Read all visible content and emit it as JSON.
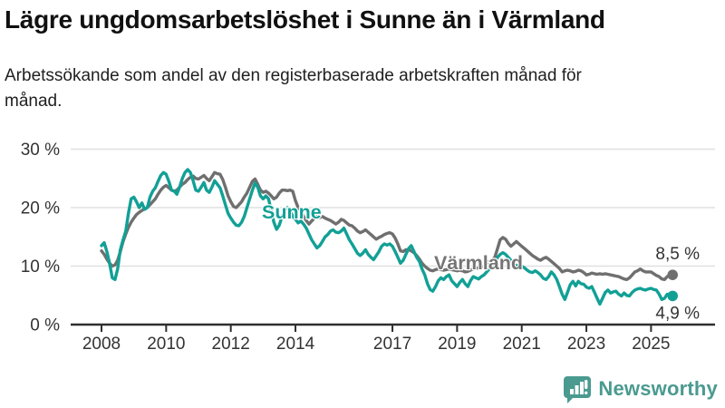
{
  "header": {
    "title": "Lägre ungdomsarbetslöshet i Sunne än i Värmland",
    "subtitle": "Arbetssökande som andel av den registerbaserade arbetskraften månad för månad."
  },
  "chart_data": {
    "type": "line",
    "unit": "%",
    "x_start": "2008-01",
    "x_end": "2025-08",
    "x_frequency": "monthly",
    "ylim": [
      0,
      30
    ],
    "grid": "horizontal",
    "y_ticks": {
      "values": [
        0,
        10,
        20,
        30
      ],
      "labels": [
        "0 %",
        "10 %",
        "20 %",
        "30 %"
      ]
    },
    "x_ticks": {
      "values": [
        2008,
        2010,
        2012,
        2014,
        2017,
        2019,
        2021,
        2023,
        2025
      ],
      "labels": [
        "2008",
        "2010",
        "2012",
        "2014",
        "2017",
        "2019",
        "2021",
        "2023",
        "2025"
      ]
    },
    "axis_color": "#2f2f2f",
    "grid_color": "#e0e0e0",
    "text_color": "#333333",
    "series": [
      {
        "name": "Värmland",
        "color": "#6f6f6f",
        "label_color": "#757575",
        "end_label": "8,5 %",
        "end_value": 8.5,
        "values": [
          12.6,
          12.0,
          11.2,
          10.5,
          10.0,
          10.2,
          11.0,
          12.5,
          14.2,
          15.5,
          16.6,
          17.5,
          18.2,
          18.8,
          19.2,
          19.5,
          19.8,
          20.0,
          20.5,
          21.0,
          21.5,
          22.3,
          23.0,
          23.5,
          23.8,
          23.4,
          23.0,
          22.8,
          23.0,
          23.5,
          24.0,
          24.3,
          24.8,
          25.2,
          25.4,
          25.0,
          24.9,
          25.2,
          25.5,
          25.0,
          24.6,
          25.3,
          26.0,
          25.8,
          25.7,
          24.8,
          23.5,
          22.0,
          21.0,
          20.2,
          20.0,
          20.5,
          21.0,
          21.8,
          22.5,
          23.5,
          24.5,
          24.9,
          24.0,
          23.0,
          22.6,
          22.8,
          22.5,
          22.0,
          21.5,
          21.8,
          22.5,
          23.0,
          23.0,
          22.9,
          23.0,
          22.8,
          21.2,
          20.0,
          19.5,
          18.5,
          17.8,
          17.2,
          17.7,
          18.2,
          18.5,
          18.3,
          18.5,
          18.2,
          18.0,
          17.8,
          17.5,
          17.2,
          17.5,
          18.0,
          17.8,
          17.4,
          17.0,
          16.9,
          16.5,
          16.0,
          15.7,
          15.9,
          16.2,
          15.8,
          15.4,
          15.0,
          14.6,
          14.9,
          15.1,
          15.4,
          15.6,
          15.7,
          15.5,
          14.8,
          13.8,
          12.6,
          12.5,
          12.8,
          12.8,
          12.6,
          12.3,
          11.8,
          11.2,
          10.5,
          10.0,
          9.6,
          9.3,
          9.2,
          9.4,
          9.5,
          9.4,
          9.3,
          9.4,
          9.5,
          9.4,
          9.3,
          9.2,
          9.3,
          9.2,
          9.0,
          9.1,
          9.3,
          9.5,
          9.6,
          9.7,
          9.8,
          10.0,
          10.3,
          10.8,
          11.0,
          11.5,
          13.0,
          14.5,
          14.9,
          14.6,
          13.9,
          13.4,
          13.8,
          14.2,
          13.8,
          13.4,
          13.0,
          12.6,
          12.2,
          11.8,
          11.5,
          11.2,
          11.0,
          11.3,
          11.5,
          11.2,
          10.8,
          10.4,
          10.0,
          9.6,
          9.0,
          9.2,
          9.3,
          9.2,
          9.0,
          9.1,
          9.3,
          9.2,
          8.9,
          8.5,
          8.6,
          8.8,
          8.7,
          8.6,
          8.7,
          8.6,
          8.7,
          8.6,
          8.5,
          8.4,
          8.3,
          8.2,
          8.0,
          7.8,
          7.7,
          8.0,
          8.5,
          9.0,
          9.2,
          9.5,
          9.2,
          9.0,
          9.0,
          9.0,
          8.7,
          8.4,
          8.2,
          7.8,
          7.7,
          8.2,
          8.5
        ]
      },
      {
        "name": "Sunne",
        "color": "#12a096",
        "label_color": "#12a096",
        "end_label": "4,9 %",
        "end_value": 4.9,
        "values": [
          13.5,
          14.0,
          12.5,
          10.5,
          8.0,
          7.7,
          9.5,
          12.8,
          14.5,
          16.0,
          19.0,
          21.5,
          21.8,
          21.0,
          20.0,
          20.8,
          19.7,
          20.0,
          21.8,
          22.8,
          23.4,
          24.5,
          25.5,
          26.0,
          25.7,
          24.5,
          23.0,
          22.8,
          22.3,
          23.5,
          25.0,
          26.0,
          26.5,
          26.0,
          24.6,
          23.0,
          22.8,
          23.5,
          24.3,
          23.0,
          22.6,
          23.5,
          24.6,
          24.0,
          23.4,
          22.0,
          20.5,
          19.0,
          18.2,
          17.5,
          17.0,
          16.9,
          17.5,
          18.5,
          20.0,
          21.5,
          23.0,
          24.2,
          23.5,
          22.0,
          21.5,
          22.0,
          21.5,
          19.5,
          17.5,
          16.3,
          17.0,
          18.5,
          19.5,
          20.0,
          19.5,
          18.5,
          18.0,
          17.4,
          17.7,
          17.2,
          16.5,
          15.5,
          14.5,
          13.8,
          13.1,
          13.5,
          14.2,
          15.0,
          15.4,
          16.0,
          16.2,
          15.8,
          15.7,
          16.0,
          16.5,
          15.5,
          14.5,
          13.8,
          13.0,
          12.2,
          11.8,
          12.2,
          12.8,
          12.0,
          11.5,
          11.1,
          11.8,
          12.5,
          13.4,
          13.8,
          13.6,
          13.8,
          13.4,
          12.5,
          11.5,
          10.5,
          11.0,
          12.0,
          13.0,
          13.5,
          12.5,
          11.5,
          10.8,
          9.5,
          8.5,
          7.0,
          6.0,
          5.7,
          6.5,
          7.5,
          8.0,
          7.7,
          8.2,
          8.5,
          7.5,
          7.0,
          6.5,
          7.2,
          7.7,
          7.0,
          6.5,
          7.5,
          8.2,
          8.0,
          7.8,
          8.2,
          8.5,
          9.0,
          9.5,
          9.8,
          10.5,
          11.5,
          12.0,
          12.3,
          12.0,
          11.5,
          11.0,
          10.5,
          10.0,
          10.2,
          10.0,
          9.7,
          9.3,
          9.0,
          8.9,
          9.2,
          8.9,
          8.5,
          7.9,
          7.7,
          8.2,
          9.0,
          8.5,
          7.7,
          6.5,
          5.2,
          4.3,
          5.5,
          6.8,
          7.4,
          6.6,
          7.4,
          7.0,
          6.9,
          6.4,
          6.2,
          6.5,
          5.5,
          4.5,
          3.5,
          4.5,
          5.5,
          5.9,
          5.4,
          5.6,
          5.7,
          5.2,
          4.9,
          5.4,
          5.0,
          4.9,
          5.5,
          5.9,
          6.1,
          6.2,
          6.0,
          5.9,
          6.1,
          6.2,
          6.0,
          5.9,
          5.2,
          4.3,
          4.5,
          5.2,
          4.9
        ]
      }
    ]
  },
  "footer": {
    "logo_text": "Newsworthy",
    "logo_color": "#4a9a90",
    "logo_icon": "bar-chart-speech-bubble"
  }
}
